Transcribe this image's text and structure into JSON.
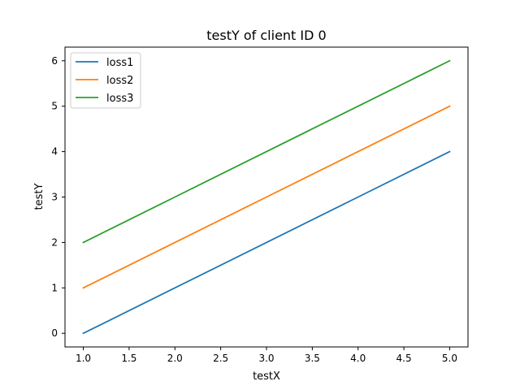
{
  "chart_data": {
    "type": "line",
    "title": "testY of client ID 0",
    "xlabel": "testX",
    "ylabel": "testY",
    "xlim": [
      0.8,
      5.2
    ],
    "ylim": [
      -0.3,
      6.3
    ],
    "xticks": [
      "1.0",
      "1.5",
      "2.0",
      "2.5",
      "3.0",
      "3.5",
      "4.0",
      "4.5",
      "5.0"
    ],
    "yticks": [
      "0",
      "1",
      "2",
      "3",
      "4",
      "5",
      "6"
    ],
    "grid": false,
    "legend_position": "top-left",
    "series": [
      {
        "name": "loss1",
        "color": "#1f77b4",
        "x": [
          1,
          2,
          3,
          4,
          5
        ],
        "y": [
          0,
          1,
          2,
          3,
          4
        ]
      },
      {
        "name": "loss2",
        "color": "#ff7f0e",
        "x": [
          1,
          2,
          3,
          4,
          5
        ],
        "y": [
          1,
          2,
          3,
          4,
          5
        ]
      },
      {
        "name": "loss3",
        "color": "#2ca02c",
        "x": [
          1,
          2,
          3,
          4,
          5
        ],
        "y": [
          2,
          3,
          4,
          5,
          6
        ]
      }
    ]
  }
}
